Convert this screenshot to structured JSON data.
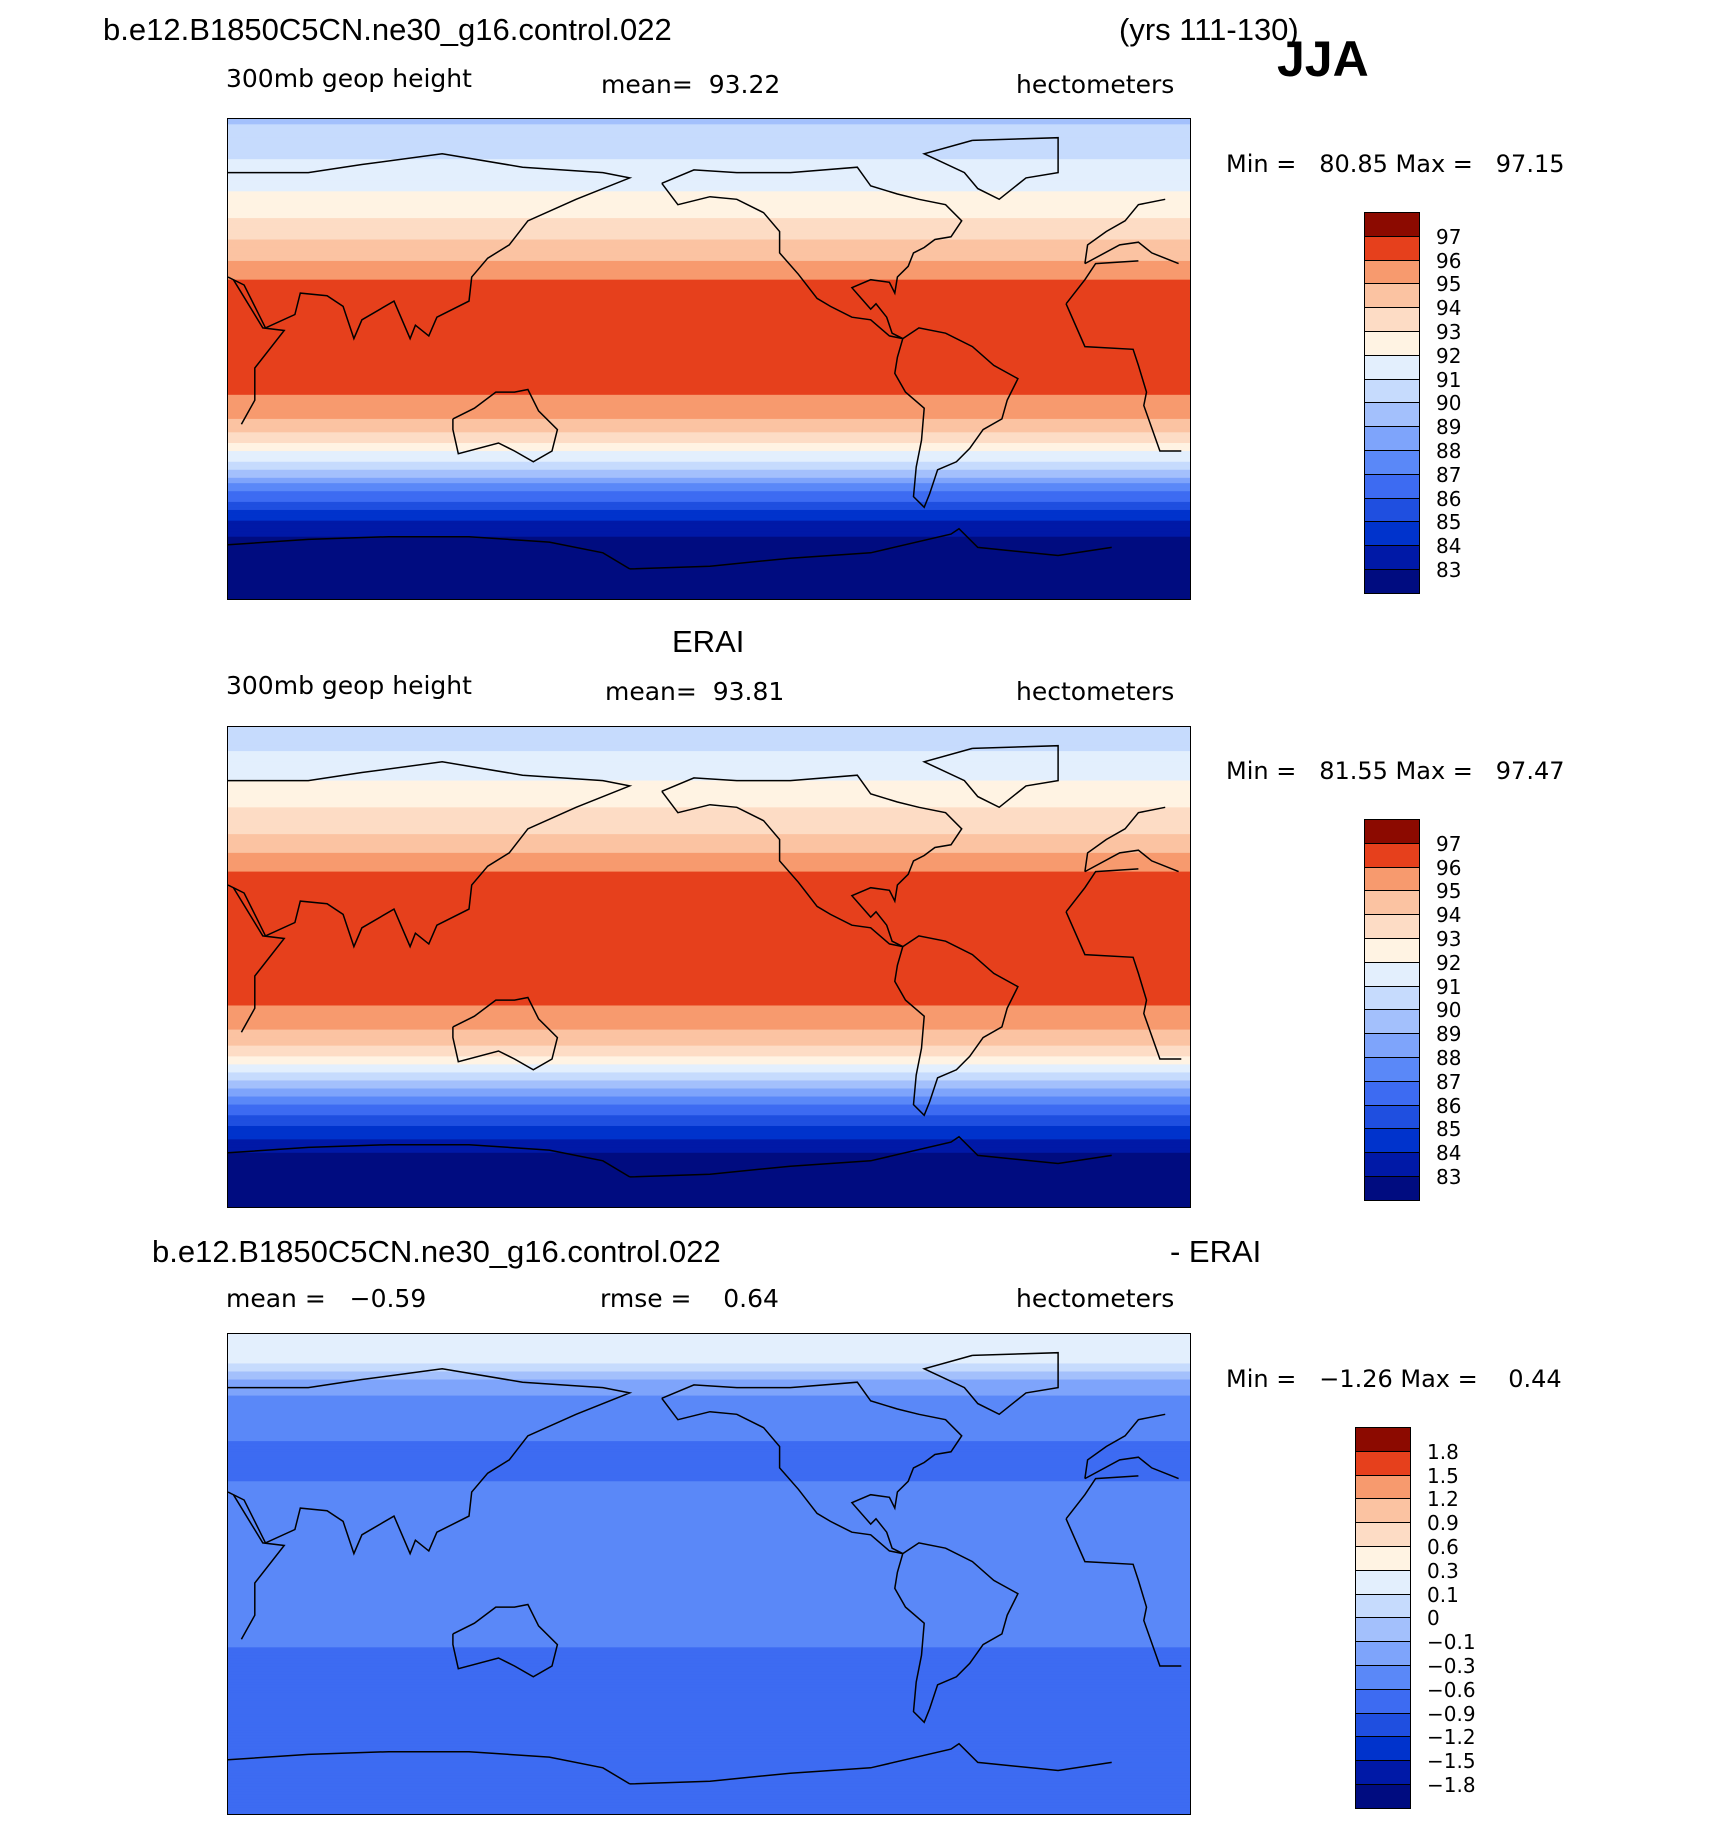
{
  "header": {
    "case_title": "b.e12.B1850C5CN.ne30_g16.control.022",
    "years": "(yrs 111-130)",
    "season": "JJA"
  },
  "panels": [
    {
      "id": "model",
      "title": "",
      "left_label": "300mb geop height",
      "center_label": "mean=  93.22",
      "units": "hectometers",
      "minmax": "Min =   80.85 Max =   97.15"
    },
    {
      "id": "obs",
      "title": "ERAI",
      "left_label": "300mb geop height",
      "center_label": "mean=  93.81",
      "units": "hectometers",
      "minmax": "Min =   81.55 Max =   97.47"
    },
    {
      "id": "diff",
      "title_left": "b.e12.B1850C5CN.ne30_g16.control.022",
      "title_right": "- ERAI",
      "left_label": "mean =   −0.59",
      "center_label": "rmse =    0.64",
      "units": "hectometers",
      "minmax": "Min =   −1.26 Max =    0.44"
    }
  ],
  "colors": {
    "ramp": [
      "#000c80",
      "#0019a7",
      "#0033cc",
      "#1f4fe0",
      "#3d6bf2",
      "#5a88f8",
      "#7ea4fb",
      "#a3c0fc",
      "#c6dbfd",
      "#e3effd",
      "#fff3e3",
      "#fddcc5",
      "#fbc3a2",
      "#f79a6e",
      "#f26a3f",
      "#e6401c",
      "#c4250c",
      "#8c0a00"
    ]
  },
  "chart_data": [
    {
      "type": "heatmap",
      "title": "300mb geop height",
      "units": "hectometers",
      "mean": 93.22,
      "min": 80.85,
      "max": 97.15,
      "colorbar_levels": [
        "97",
        "96",
        "95",
        "94",
        "93",
        "92",
        "91",
        "90",
        "89",
        "88",
        "87",
        "86",
        "85",
        "84",
        "83"
      ],
      "zonal_profile": [
        {
          "lat": 90,
          "value": 89.8
        },
        {
          "lat": 80,
          "value": 90.6
        },
        {
          "lat": 70,
          "value": 91.4
        },
        {
          "lat": 60,
          "value": 92.3
        },
        {
          "lat": 50,
          "value": 93.3
        },
        {
          "lat": 40,
          "value": 94.6
        },
        {
          "lat": 30,
          "value": 96.0
        },
        {
          "lat": 20,
          "value": 96.5
        },
        {
          "lat": 10,
          "value": 96.5
        },
        {
          "lat": 0,
          "value": 96.5
        },
        {
          "lat": -10,
          "value": 96.2
        },
        {
          "lat": -20,
          "value": 95.4
        },
        {
          "lat": -30,
          "value": 93.4
        },
        {
          "lat": -40,
          "value": 90.2
        },
        {
          "lat": -50,
          "value": 86.8
        },
        {
          "lat": -60,
          "value": 84.0
        },
        {
          "lat": -70,
          "value": 82.4
        },
        {
          "lat": -80,
          "value": 81.3
        },
        {
          "lat": -90,
          "value": 80.9
        }
      ]
    },
    {
      "type": "heatmap",
      "title": "ERAI 300mb geop height",
      "units": "hectometers",
      "mean": 93.81,
      "min": 81.55,
      "max": 97.47,
      "colorbar_levels": [
        "97",
        "96",
        "95",
        "94",
        "93",
        "92",
        "91",
        "90",
        "89",
        "88",
        "87",
        "86",
        "85",
        "84",
        "83"
      ],
      "zonal_profile": [
        {
          "lat": 90,
          "value": 90.3
        },
        {
          "lat": 80,
          "value": 91.1
        },
        {
          "lat": 70,
          "value": 92.0
        },
        {
          "lat": 60,
          "value": 93.0
        },
        {
          "lat": 50,
          "value": 94.0
        },
        {
          "lat": 40,
          "value": 95.4
        },
        {
          "lat": 30,
          "value": 96.8
        },
        {
          "lat": 20,
          "value": 96.9
        },
        {
          "lat": 10,
          "value": 96.6
        },
        {
          "lat": 0,
          "value": 96.5
        },
        {
          "lat": -10,
          "value": 96.3
        },
        {
          "lat": -20,
          "value": 95.6
        },
        {
          "lat": -30,
          "value": 93.8
        },
        {
          "lat": -40,
          "value": 90.8
        },
        {
          "lat": -50,
          "value": 87.3
        },
        {
          "lat": -60,
          "value": 84.6
        },
        {
          "lat": -70,
          "value": 82.9
        },
        {
          "lat": -80,
          "value": 81.8
        },
        {
          "lat": -90,
          "value": 81.6
        }
      ]
    },
    {
      "type": "heatmap",
      "title": "b.e12.B1850C5CN.ne30_g16.control.022 - ERAI",
      "units": "hectometers",
      "mean": -0.59,
      "rmse": 0.64,
      "min": -1.26,
      "max": 0.44,
      "colorbar_levels": [
        "1.8",
        "1.5",
        "1.2",
        "0.9",
        "0.6",
        "0.3",
        "0.1",
        "0",
        "−0.1",
        "−0.3",
        "−0.6",
        "−0.9",
        "−1.2",
        "−1.5",
        "−1.8"
      ],
      "zonal_profile": [
        {
          "lat": 90,
          "value": 0.3
        },
        {
          "lat": 80,
          "value": 0.15
        },
        {
          "lat": 70,
          "value": -0.2
        },
        {
          "lat": 60,
          "value": -0.5
        },
        {
          "lat": 50,
          "value": -0.6
        },
        {
          "lat": 40,
          "value": -0.65
        },
        {
          "lat": 30,
          "value": -0.55
        },
        {
          "lat": 20,
          "value": -0.5
        },
        {
          "lat": 10,
          "value": -0.45
        },
        {
          "lat": 0,
          "value": -0.45
        },
        {
          "lat": -10,
          "value": -0.45
        },
        {
          "lat": -20,
          "value": -0.5
        },
        {
          "lat": -30,
          "value": -0.65
        },
        {
          "lat": -40,
          "value": -0.8
        },
        {
          "lat": -50,
          "value": -0.85
        },
        {
          "lat": -60,
          "value": -0.75
        },
        {
          "lat": -70,
          "value": -0.7
        },
        {
          "lat": -80,
          "value": -0.7
        },
        {
          "lat": -90,
          "value": -0.7
        }
      ]
    }
  ]
}
